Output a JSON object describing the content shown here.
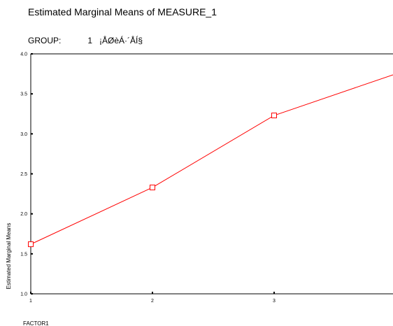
{
  "chart_data": {
    "type": "line",
    "title": "Estimated Marginal Means of MEASURE_1",
    "subtitle_label": "GROUP:",
    "subtitle_value": "1",
    "subtitle_name": "¡ÅØèÁ·´ÅÍ§",
    "xlabel": "FACTOR1",
    "ylabel": "Estimated Marginal Means",
    "x_ticks": [
      "1",
      "2",
      "3"
    ],
    "y_ticks": [
      "1.0",
      "1.5",
      "2.0",
      "2.5",
      "3.0",
      "3.5",
      "4.0"
    ],
    "xlim": [
      1,
      4
    ],
    "ylim": [
      1.0,
      4.0
    ],
    "grid": false,
    "series": [
      {
        "x": [
          1,
          2,
          3,
          4
        ],
        "values": [
          1.62,
          2.33,
          3.23,
          3.75
        ],
        "markers": [
          true,
          true,
          true,
          false
        ]
      }
    ],
    "colors": {
      "line": "#ff0000",
      "axis": "#000000"
    }
  }
}
